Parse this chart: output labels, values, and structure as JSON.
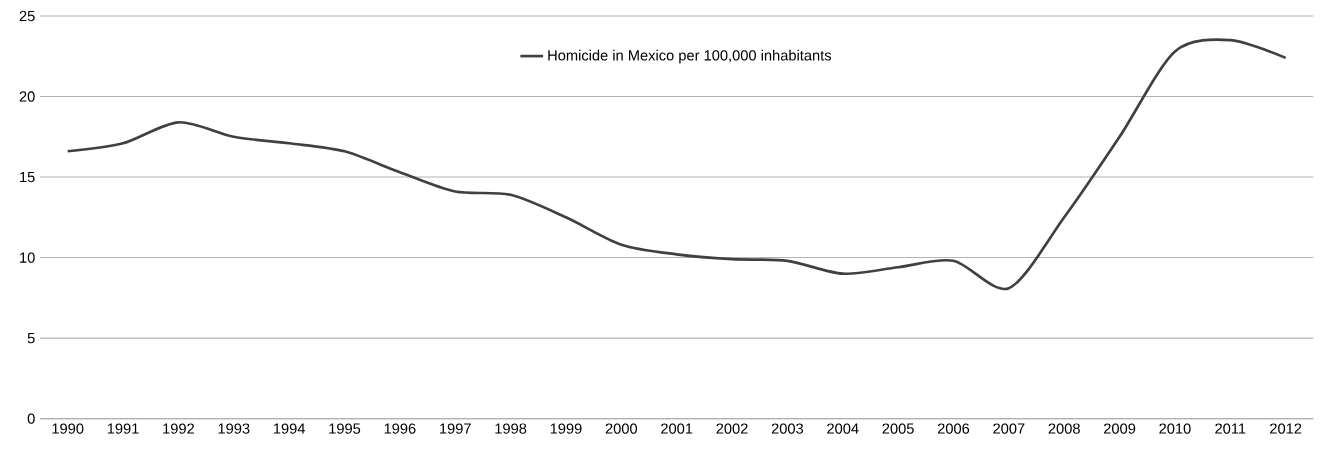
{
  "chart_data": {
    "type": "line",
    "categories": [
      "1990",
      "1991",
      "1992",
      "1993",
      "1994",
      "1995",
      "1996",
      "1997",
      "1998",
      "1999",
      "2000",
      "2001",
      "2002",
      "2003",
      "2004",
      "2005",
      "2006",
      "2007",
      "2008",
      "2009",
      "2010",
      "2011",
      "2012"
    ],
    "series": [
      {
        "name": "Homicide in Mexico per 100,000 inhabitants",
        "color": "#404040",
        "values": [
          16.6,
          17.1,
          18.4,
          17.5,
          17.1,
          16.6,
          15.3,
          14.1,
          13.9,
          12.5,
          10.8,
          10.2,
          9.9,
          9.8,
          9.0,
          9.4,
          9.8,
          8.1,
          12.5,
          17.5,
          22.8,
          23.5,
          22.4
        ]
      }
    ],
    "ylim": [
      0,
      25
    ],
    "yticks": [
      0,
      5,
      10,
      15,
      20,
      25
    ],
    "grid": "y",
    "legend": "top",
    "marker": "none",
    "line_style": "solid"
  }
}
